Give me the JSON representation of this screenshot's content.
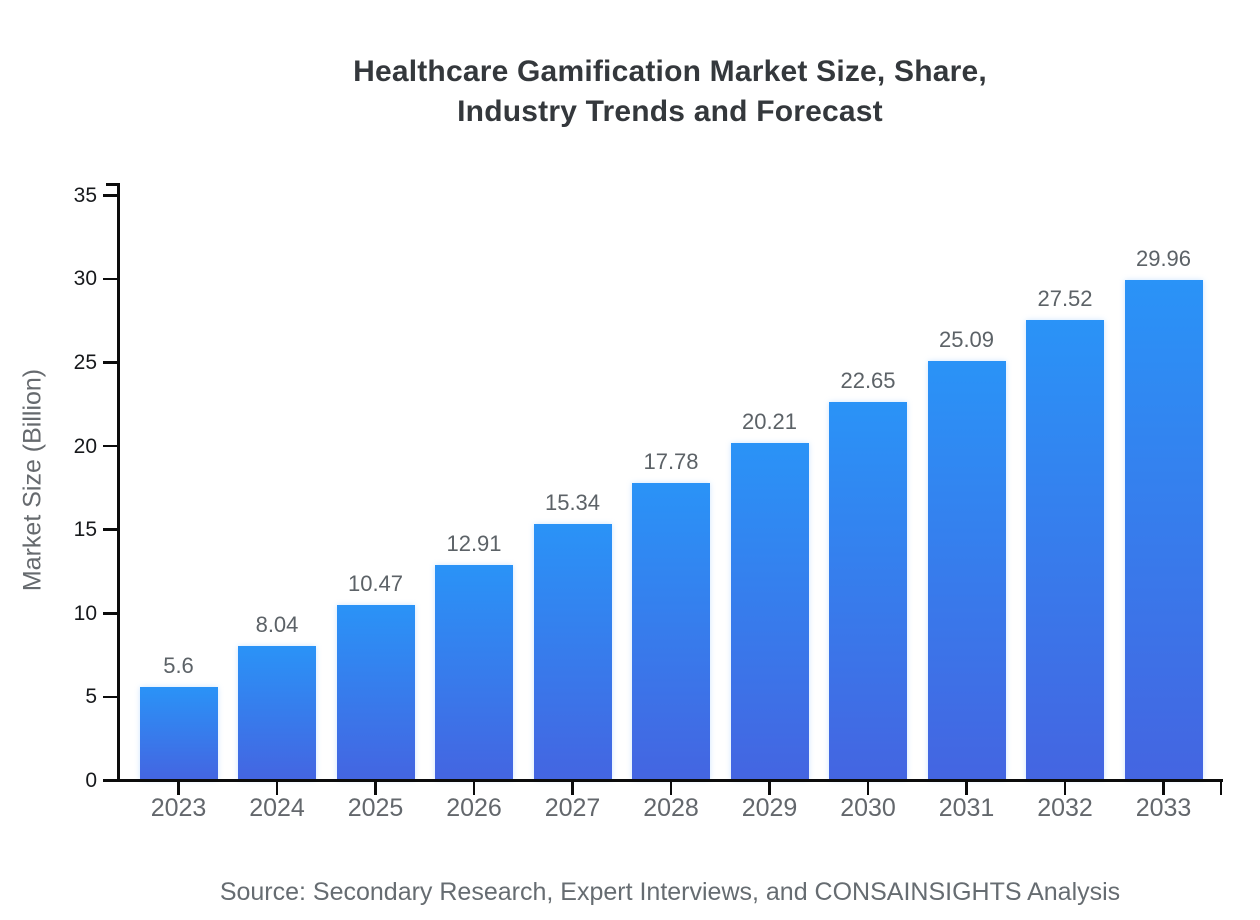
{
  "title": {
    "line1": "Healthcare Gamification Market Size, Share,",
    "line2": "Industry Trends and Forecast"
  },
  "source_note": "Source: Secondary Research, Expert Interviews, and CONSAINSIGHTS Analysis",
  "chart_data": {
    "type": "bar",
    "title": "Healthcare Gamification Market Size, Share, Industry Trends and Forecast",
    "xlabel": "",
    "ylabel": "Market Size (Billion)",
    "categories": [
      "2023",
      "2024",
      "2025",
      "2026",
      "2027",
      "2028",
      "2029",
      "2030",
      "2031",
      "2032",
      "2033"
    ],
    "values": [
      5.6,
      8.04,
      10.47,
      12.91,
      15.34,
      17.78,
      20.21,
      22.65,
      25.09,
      27.52,
      29.96
    ],
    "value_labels": [
      "5.6",
      "8.04",
      "10.47",
      "12.91",
      "15.34",
      "17.78",
      "20.21",
      "22.65",
      "25.09",
      "27.52",
      "29.96"
    ],
    "ylim": [
      0,
      35
    ],
    "yticks": [
      0,
      5,
      10,
      15,
      20,
      25,
      30,
      35
    ],
    "grid": false,
    "legend": false,
    "bar_gradient_top": "#2a93f7",
    "bar_gradient_bottom": "#4465e1"
  },
  "colors": {
    "background": "#ffffff",
    "title": "#34383c",
    "axis": "#0c0c0c",
    "y_tick_label": "#17191c",
    "x_tick_label": "#63676c",
    "value_label": "#5c6267",
    "source_text": "#666c71"
  }
}
